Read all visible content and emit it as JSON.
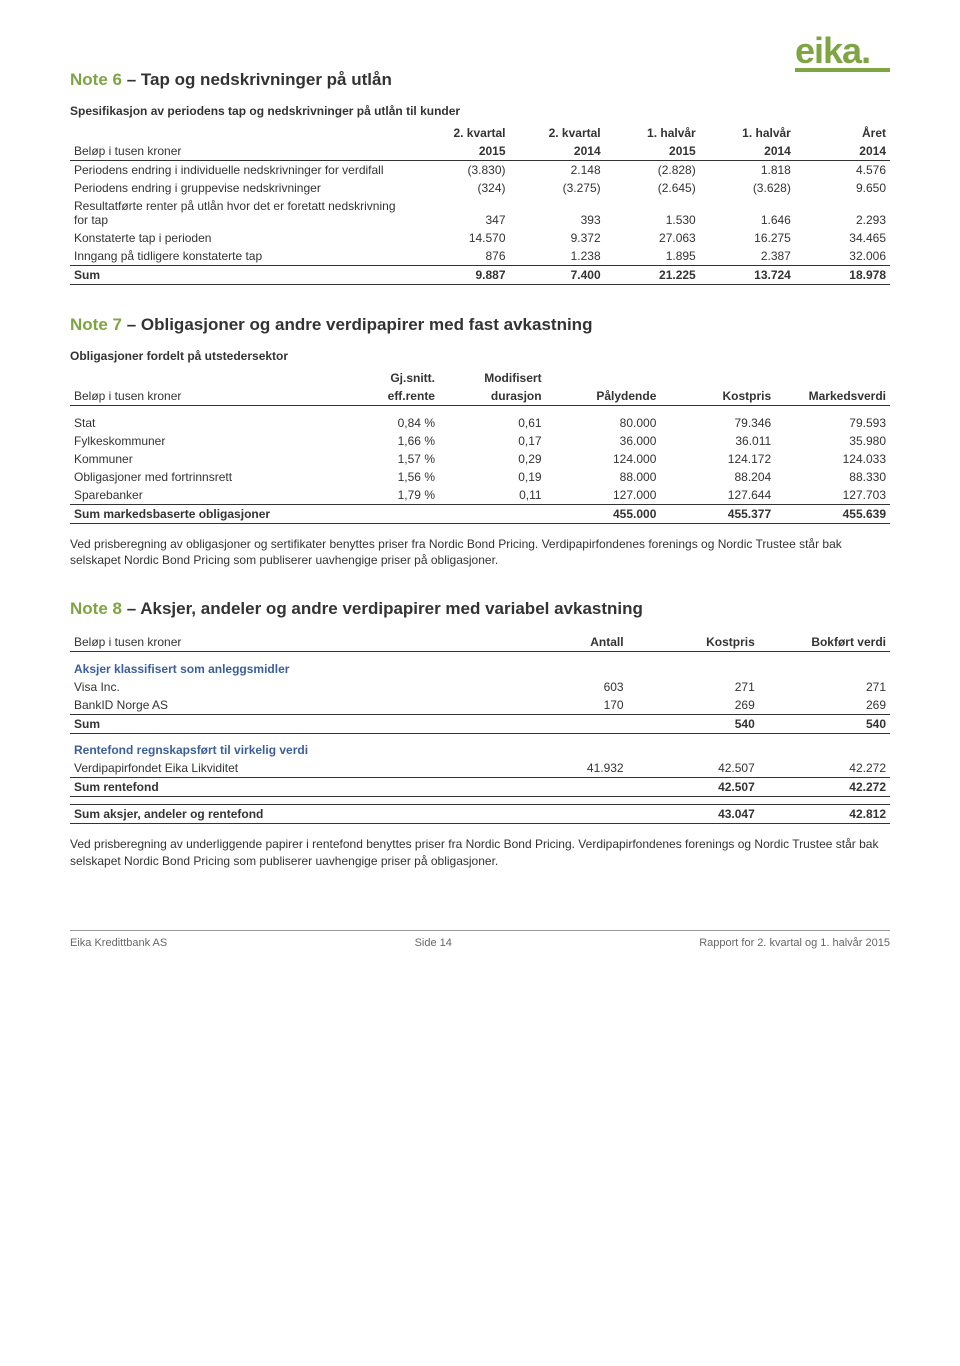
{
  "logo": {
    "text": "eika",
    "dot": "."
  },
  "note6": {
    "num": "Note 6",
    "title": "– Tap og nedskrivninger på utlån",
    "subtitle": "Spesifikasjon av periodens tap og nedskrivninger på utlån til kunder",
    "col_label": "Beløp i tusen kroner",
    "headers": [
      [
        "2. kvartal",
        "2015"
      ],
      [
        "2. kvartal",
        "2014"
      ],
      [
        "1. halvår",
        "2015"
      ],
      [
        "1. halvår",
        "2014"
      ],
      [
        "Året",
        "2014"
      ]
    ],
    "rows": [
      {
        "label": "Periodens endring i individuelle nedskrivninger for verdifall",
        "v": [
          "(3.830)",
          "2.148",
          "(2.828)",
          "1.818",
          "4.576"
        ]
      },
      {
        "label": "Periodens endring i gruppevise nedskrivninger",
        "v": [
          "(324)",
          "(3.275)",
          "(2.645)",
          "(3.628)",
          "9.650"
        ]
      },
      {
        "label": "Resultatførte renter på utlån hvor det er foretatt nedskrivning for tap",
        "v": [
          "347",
          "393",
          "1.530",
          "1.646",
          "2.293"
        ]
      },
      {
        "label": "Konstaterte tap i perioden",
        "v": [
          "14.570",
          "9.372",
          "27.063",
          "16.275",
          "34.465"
        ]
      },
      {
        "label": "Inngang på tidligere konstaterte tap",
        "v": [
          "876",
          "1.238",
          "1.895",
          "2.387",
          "32.006"
        ]
      }
    ],
    "sum": {
      "label": "Sum",
      "v": [
        "9.887",
        "7.400",
        "21.225",
        "13.724",
        "18.978"
      ]
    }
  },
  "note7": {
    "num": "Note 7",
    "title": "– Obligasjoner og andre verdipapirer med fast avkastning",
    "subtitle": "Obligasjoner fordelt på utstedersektor",
    "col_label": "Beløp i tusen kroner",
    "headers": [
      [
        "Gj.snitt.",
        "eff.rente"
      ],
      [
        "Modifisert",
        "durasjon"
      ],
      [
        "",
        "Pålydende"
      ],
      [
        "",
        "Kostpris"
      ],
      [
        "",
        "Markedsverdi"
      ]
    ],
    "rows": [
      {
        "label": "Stat",
        "v": [
          "0,84 %",
          "0,61",
          "80.000",
          "79.346",
          "79.593"
        ]
      },
      {
        "label": "Fylkeskommuner",
        "v": [
          "1,66 %",
          "0,17",
          "36.000",
          "36.011",
          "35.980"
        ]
      },
      {
        "label": "Kommuner",
        "v": [
          "1,57 %",
          "0,29",
          "124.000",
          "124.172",
          "124.033"
        ]
      },
      {
        "label": "Obligasjoner med fortrinnsrett",
        "v": [
          "1,56 %",
          "0,19",
          "88.000",
          "88.204",
          "88.330"
        ]
      },
      {
        "label": "Sparebanker",
        "v": [
          "1,79 %",
          "0,11",
          "127.000",
          "127.644",
          "127.703"
        ]
      }
    ],
    "sum": {
      "label": "Sum markedsbaserte obligasjoner",
      "v": [
        "",
        "",
        "455.000",
        "455.377",
        "455.639"
      ]
    },
    "para": "Ved prisberegning av obligasjoner og sertifikater benyttes priser fra Nordic Bond Pricing. Verdipapirfondenes forenings og Nordic Trustee står bak selskapet Nordic Bond Pricing som publiserer uavhengige priser på obligasjoner."
  },
  "note8": {
    "num": "Note 8",
    "title": "– Aksjer, andeler og andre verdipapirer med variabel avkastning",
    "col_label": "Beløp i tusen kroner",
    "headers": [
      "Antall",
      "Kostpris",
      "Bokført verdi"
    ],
    "sec1_title": "Aksjer klassifisert som anleggsmidler",
    "sec1_rows": [
      {
        "label": "Visa Inc.",
        "v": [
          "603",
          "271",
          "271"
        ]
      },
      {
        "label": "BankID Norge AS",
        "v": [
          "170",
          "269",
          "269"
        ]
      }
    ],
    "sec1_sum": {
      "label": "Sum",
      "v": [
        "",
        "540",
        "540"
      ]
    },
    "sec2_title": "Rentefond regnskapsført til virkelig verdi",
    "sec2_rows": [
      {
        "label": "Verdipapirfondet Eika Likviditet",
        "v": [
          "41.932",
          "42.507",
          "42.272"
        ]
      }
    ],
    "sec2_sum": {
      "label": "Sum rentefond",
      "v": [
        "",
        "42.507",
        "42.272"
      ]
    },
    "total": {
      "label": "Sum aksjer, andeler og rentefond",
      "v": [
        "",
        "43.047",
        "42.812"
      ]
    },
    "para": "Ved prisberegning av underliggende papirer i rentefond benyttes priser fra Nordic Bond Pricing. Verdipapirfondenes forenings og Nordic Trustee står bak selskapet Nordic Bond Pricing som publiserer uavhengige priser på obligasjoner."
  },
  "footer": {
    "left": "Eika Kredittbank AS",
    "center": "Side 14",
    "right": "Rapport for 2. kvartal og 1. halvår 2015"
  }
}
